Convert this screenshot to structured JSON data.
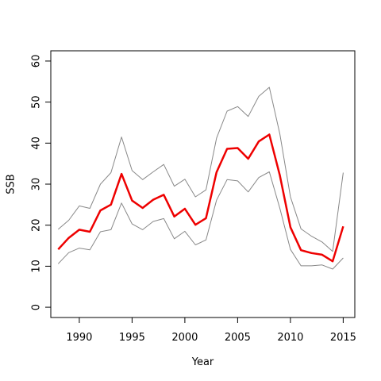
{
  "chart_data": {
    "type": "line",
    "xlabel": "Year",
    "ylabel": "SSB",
    "xlim": [
      1987.3,
      2016.1
    ],
    "ylim": [
      -2.5,
      62.5
    ],
    "x_ticks": [
      1990,
      1995,
      2000,
      2005,
      2010,
      2015
    ],
    "y_ticks": [
      0,
      10,
      20,
      30,
      40,
      50,
      60
    ],
    "x_tick_labels": [
      "1990",
      "1995",
      "2000",
      "2005",
      "2010",
      "2015"
    ],
    "y_tick_labels": [
      "0",
      "10",
      "20",
      "30",
      "40",
      "50",
      "60"
    ],
    "grid": false,
    "x": [
      1988,
      1989,
      1990,
      1991,
      1992,
      1993,
      1994,
      1995,
      1996,
      1997,
      1998,
      1999,
      2000,
      2001,
      2002,
      2003,
      2004,
      2005,
      2006,
      2007,
      2008,
      2009,
      2010,
      2011,
      2012,
      2013,
      2014,
      2015
    ],
    "series": [
      {
        "color": "#ee0000",
        "width": 2.5,
        "values": [
          14.1,
          16.9,
          18.9,
          18.4,
          23.6,
          25.0,
          32.5,
          26.0,
          24.2,
          26.2,
          27.4,
          22.1,
          24.0,
          20.1,
          21.7,
          32.9,
          38.6,
          38.8,
          36.2,
          40.4,
          42.1,
          32.1,
          19.5,
          13.9,
          13.2,
          12.8,
          11.2,
          19.7
        ]
      },
      {
        "color": "#888888",
        "width": 1,
        "values": [
          19.0,
          21.2,
          24.7,
          24.1,
          30.0,
          32.8,
          41.5,
          33.3,
          31.1,
          33.0,
          34.8,
          29.5,
          31.2,
          26.9,
          28.6,
          41.2,
          47.8,
          48.9,
          46.5,
          51.4,
          53.6,
          42.2,
          26.9,
          19.1,
          17.3,
          15.9,
          13.6,
          32.8
        ]
      },
      {
        "color": "#888888",
        "width": 1,
        "values": [
          10.6,
          13.3,
          14.4,
          14.0,
          18.4,
          18.9,
          25.4,
          20.3,
          18.9,
          20.9,
          21.6,
          16.7,
          18.5,
          15.2,
          16.4,
          26.1,
          31.1,
          30.8,
          28.1,
          31.6,
          33.0,
          24.1,
          14.1,
          10.1,
          10.1,
          10.3,
          9.3,
          12.0
        ]
      }
    ]
  }
}
